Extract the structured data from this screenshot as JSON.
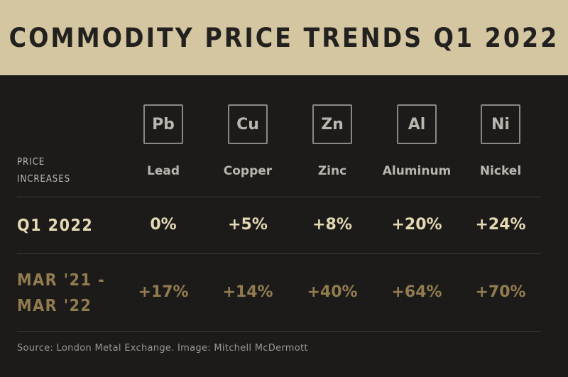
{
  "chart_data": {
    "type": "table",
    "title": "COMMODITY PRICE TRENDS Q1 2022",
    "corner_label": [
      "PRICE",
      "INCREASES"
    ],
    "columns": [
      {
        "symbol": "Pb",
        "name": "Lead"
      },
      {
        "symbol": "Cu",
        "name": "Copper"
      },
      {
        "symbol": "Zn",
        "name": "Zinc"
      },
      {
        "symbol": "Al",
        "name": "Aluminum"
      },
      {
        "symbol": "Ni",
        "name": "Nickel"
      }
    ],
    "rows": [
      {
        "label": [
          "Q1 2022"
        ],
        "values": [
          "0%",
          "+5%",
          "+8%",
          "+20%",
          "+24%"
        ]
      },
      {
        "label": [
          "MAR '21 -",
          "MAR '22"
        ],
        "values": [
          "+17%",
          "+14%",
          "+40%",
          "+64%",
          "+70%"
        ]
      }
    ],
    "source": "Source: London Metal Exchange. Image: Mitchell McDermott",
    "colors": {
      "header_band": "#d3c6a0",
      "background": "#1c1b1a",
      "row1_text": "#e4d9b3",
      "row2_text": "#927c4f"
    }
  }
}
